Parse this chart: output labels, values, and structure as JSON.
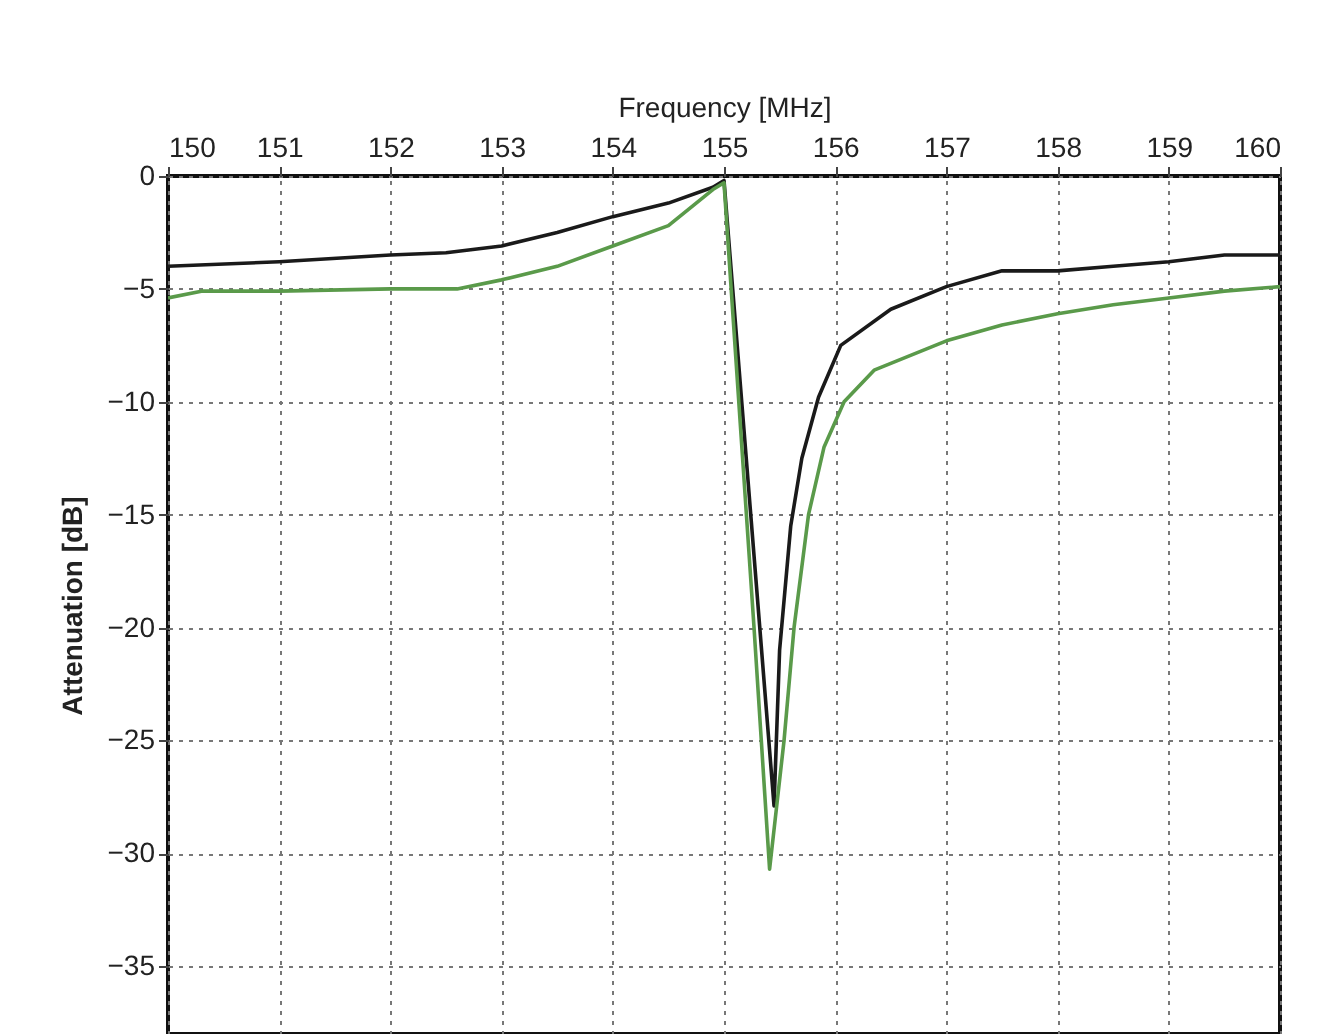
{
  "chart_data": {
    "type": "line",
    "xlabel": "Frequency [MHz]",
    "ylabel": "Attenuation [dB]",
    "xlim": [
      150,
      160
    ],
    "xticks": [
      150,
      151,
      152,
      153,
      154,
      155,
      156,
      157,
      158,
      159,
      160
    ],
    "ylim": [
      -38,
      0
    ],
    "yticks": [
      0,
      -5,
      -10,
      -15,
      -20,
      -25,
      -30,
      -35
    ],
    "grid": true,
    "line_style": "solid",
    "series": [
      {
        "color": "#1a1a1a",
        "x": [
          150,
          151,
          152,
          152.5,
          153,
          153.5,
          154,
          154.5,
          154.9,
          155.0,
          155.2,
          155.45,
          155.5,
          155.6,
          155.7,
          155.85,
          156.05,
          156.5,
          157,
          157.5,
          158,
          158.5,
          159,
          159.5,
          160
        ],
        "values": [
          -4.0,
          -3.8,
          -3.5,
          -3.4,
          -3.1,
          -2.5,
          -1.8,
          -1.2,
          -0.5,
          -0.2,
          -12.5,
          -27.9,
          -21,
          -15.5,
          -12.5,
          -9.8,
          -7.5,
          -5.9,
          -4.9,
          -4.2,
          -4.2,
          -4.0,
          -3.8,
          -3.5,
          -3.5
        ]
      },
      {
        "color": "#5a9a4a",
        "x": [
          150,
          150.3,
          151,
          152,
          152.6,
          153,
          153.5,
          154,
          154.5,
          154.9,
          155.0,
          155.27,
          155.41,
          155.54,
          155.63,
          155.76,
          155.9,
          156.08,
          156.35,
          157,
          157.5,
          158,
          158.5,
          159,
          159.5,
          160
        ],
        "values": [
          -5.4,
          -5.1,
          -5.1,
          -5.0,
          -5.0,
          -4.6,
          -4.0,
          -3.1,
          -2.2,
          -0.6,
          -0.3,
          -20,
          -30.7,
          -25,
          -20,
          -15,
          -12,
          -10,
          -8.6,
          -7.3,
          -6.6,
          -6.1,
          -5.7,
          -5.4,
          -5.1,
          -4.9
        ]
      }
    ]
  }
}
